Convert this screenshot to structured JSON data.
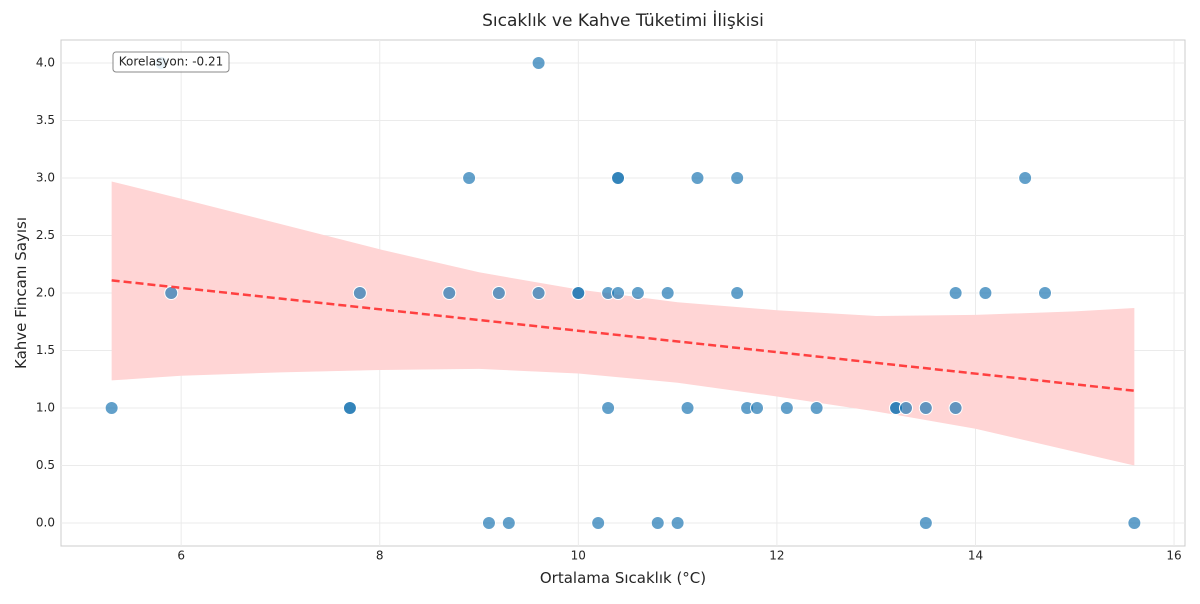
{
  "chart_data": {
    "type": "scatter",
    "title": "Sıcaklık ve Kahve Tüketimi İlişkisi",
    "x_label": "Ortalama Sıcaklık (°C)",
    "y_label": "Kahve Fincanı Sayısı",
    "annotation": "Korelasyon: -0.21",
    "xlim": [
      4.79,
      16.11
    ],
    "ylim": [
      -0.2,
      4.2
    ],
    "xticks": [
      6,
      8,
      10,
      12,
      14,
      16
    ],
    "yticks": [
      {
        "value": 0,
        "label": "0.0"
      },
      {
        "value": 0.5,
        "label": "0.5"
      },
      {
        "value": 1,
        "label": "1.0"
      },
      {
        "value": 1.5,
        "label": "1.5"
      },
      {
        "value": 2,
        "label": "2.0"
      },
      {
        "value": 2.5,
        "label": "2.5"
      },
      {
        "value": 3,
        "label": "3.0"
      },
      {
        "value": 3.5,
        "label": "3.5"
      },
      {
        "value": 4,
        "label": "4.0"
      }
    ],
    "grid": true,
    "color": "#1f77b4",
    "x": [
      5.3,
      5.9,
      5.8,
      7.7,
      7.7,
      7.8,
      8.7,
      8.9,
      9.1,
      9.2,
      9.3,
      9.6,
      9.6,
      10.0,
      10.0,
      10.2,
      10.3,
      10.3,
      10.4,
      10.4,
      10.4,
      10.6,
      10.8,
      10.9,
      11.0,
      11.1,
      11.2,
      11.6,
      11.6,
      11.7,
      11.8,
      12.1,
      12.4,
      13.2,
      13.2,
      13.3,
      13.5,
      13.5,
      13.8,
      13.8,
      14.1,
      14.5,
      14.7,
      15.6
    ],
    "values": [
      1,
      2,
      4,
      1,
      1,
      2,
      2,
      3,
      0,
      2,
      0,
      4,
      2,
      2,
      2,
      0,
      2,
      1,
      3,
      3,
      2,
      2,
      0,
      2,
      0,
      1,
      3,
      3,
      2,
      1,
      1,
      1,
      1,
      1,
      1,
      1,
      1,
      0,
      2,
      1,
      2,
      3,
      2,
      0
    ],
    "trend": {
      "color": "#ff4040",
      "x": [
        5.3,
        15.6
      ],
      "values": [
        2.11,
        1.15
      ]
    },
    "band": {
      "color": "#ffd5d5",
      "x": [
        5.3,
        6,
        7,
        8,
        9,
        10,
        11,
        12,
        13,
        14,
        15,
        15.6
      ],
      "upper": [
        2.97,
        2.82,
        2.6,
        2.38,
        2.18,
        2.03,
        1.92,
        1.85,
        1.8,
        1.81,
        1.84,
        1.87
      ],
      "lower": [
        1.24,
        1.28,
        1.31,
        1.33,
        1.34,
        1.3,
        1.22,
        1.1,
        0.97,
        0.82,
        0.62,
        0.5
      ]
    }
  }
}
